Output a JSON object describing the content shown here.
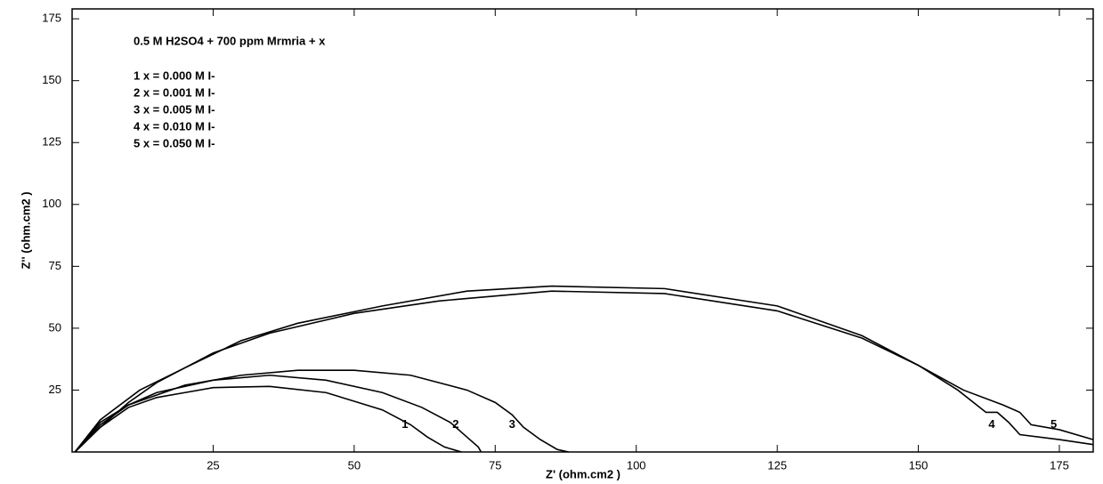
{
  "chart_data": {
    "type": "line",
    "title": "0.5 M H2SO4 + 700 ppm Mrmria + x",
    "x_label": "Z' (ohm.cm2 )",
    "y_label": "Z'' (ohm.cm2 )",
    "xlim": [
      0,
      181
    ],
    "ylim": [
      0,
      179
    ],
    "xticks": [
      25,
      50,
      75,
      100,
      125,
      150,
      175
    ],
    "yticks": [
      25,
      50,
      75,
      100,
      125,
      150,
      175
    ],
    "series": [
      {
        "name": "1 x = 0.000 M I-",
        "color": "#000000",
        "x": [
          0.5,
          5,
          10,
          15,
          20,
          25,
          35,
          45,
          55,
          60,
          63,
          66,
          69
        ],
        "values": [
          0,
          10,
          18,
          22,
          24,
          26,
          26.5,
          24,
          17,
          11,
          6,
          2,
          0
        ]
      },
      {
        "name": "2 x = 0.001 M I-",
        "color": "#000000",
        "x": [
          0.5,
          5,
          10,
          15,
          25,
          35,
          45,
          55,
          62,
          67,
          70,
          72,
          72.5
        ],
        "values": [
          0,
          12,
          19,
          24,
          29,
          31,
          29,
          24,
          18,
          12,
          6,
          2,
          0
        ]
      },
      {
        "name": "3 x = 0.005 M I-",
        "color": "#000000",
        "x": [
          0.5,
          5,
          10,
          20,
          30,
          40,
          50,
          60,
          70,
          75,
          78,
          80,
          83,
          86,
          88
        ],
        "values": [
          0,
          11,
          19,
          27,
          31,
          33,
          33,
          31,
          25,
          20,
          15,
          10,
          5,
          1,
          0
        ]
      },
      {
        "name": "4 x = 0.010 M I-",
        "color": "#000000",
        "x": [
          0.5,
          5,
          10,
          15,
          25,
          35,
          50,
          65,
          85,
          105,
          125,
          140,
          150,
          157,
          162,
          164,
          166,
          168,
          175,
          181
        ],
        "values": [
          0,
          10,
          20,
          28,
          40,
          48,
          56,
          61,
          65,
          64,
          57,
          46,
          35,
          25,
          16,
          16,
          12,
          7,
          5,
          3
        ]
      },
      {
        "name": "5 x = 0.050 M I-",
        "color": "#000000",
        "x": [
          0.5,
          5,
          12,
          20,
          30,
          40,
          55,
          70,
          85,
          105,
          125,
          140,
          150,
          158,
          165,
          168,
          170,
          175,
          181
        ],
        "values": [
          0,
          13,
          25,
          34,
          45,
          52,
          59,
          65,
          67,
          66,
          59,
          47,
          35,
          25,
          19,
          16,
          11,
          9,
          5
        ]
      }
    ],
    "annotations": [
      {
        "text": "1",
        "x": 59,
        "y": 11
      },
      {
        "text": "2",
        "x": 68,
        "y": 11
      },
      {
        "text": "3",
        "x": 78,
        "y": 11
      },
      {
        "text": "4",
        "x": 163,
        "y": 11
      },
      {
        "text": "5",
        "x": 174,
        "y": 11
      }
    ]
  }
}
